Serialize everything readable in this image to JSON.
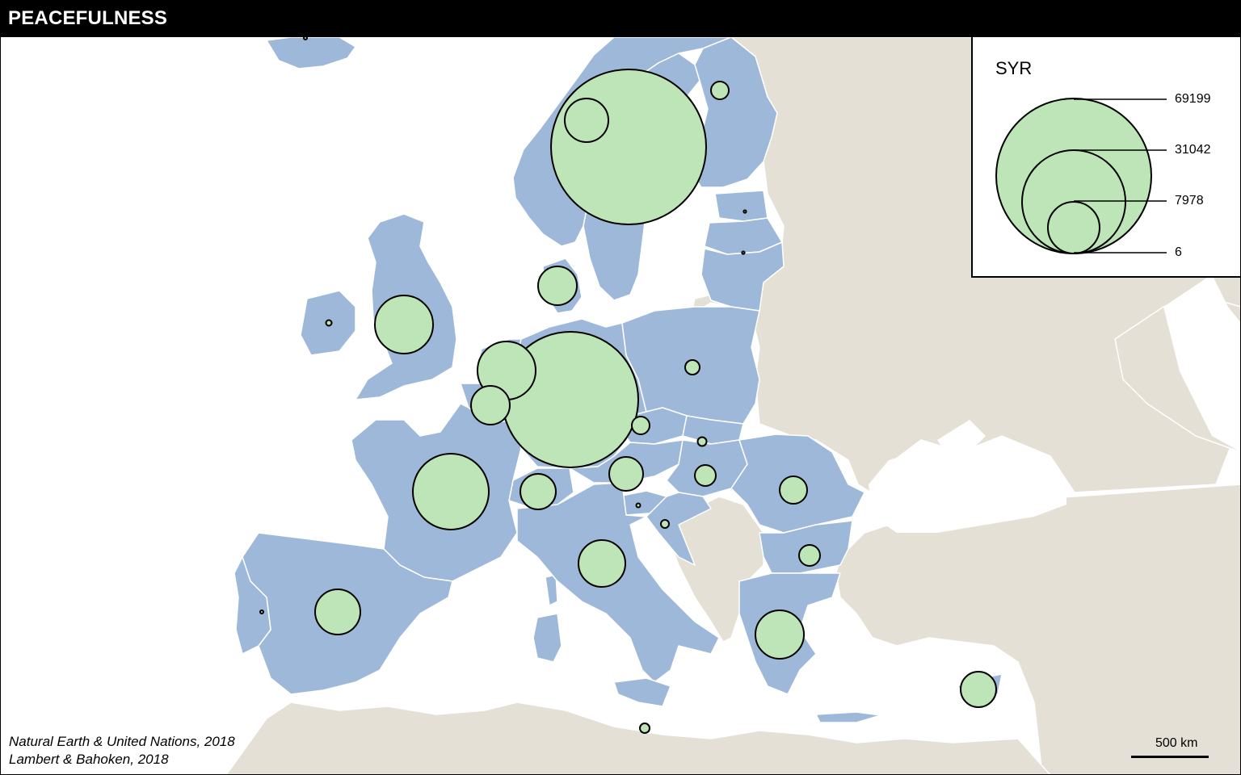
{
  "title": "PEACEFULNESS",
  "colors": {
    "sea": "#ffffff",
    "other_land": "#e5e0d5",
    "eu_countries": "#9eb8d9",
    "country_border": "#ffffff",
    "symbol_fill": "#bde5b7",
    "symbol_stroke": "#000000"
  },
  "legend": {
    "title": "SYR",
    "values": [
      "69199",
      "31042",
      "7978",
      "6"
    ]
  },
  "symbols": [
    {
      "country": "Norway",
      "value_class": "medium"
    },
    {
      "country": "Sweden",
      "value_class": "large"
    },
    {
      "country": "Finland",
      "value_class": "small"
    },
    {
      "country": "Estonia",
      "value_class": "tiny"
    },
    {
      "country": "Latvia",
      "value_class": "tiny"
    },
    {
      "country": "Denmark",
      "value_class": "small"
    },
    {
      "country": "United Kingdom",
      "value_class": "medium"
    },
    {
      "country": "Ireland",
      "value_class": "tiny"
    },
    {
      "country": "Iceland",
      "value_class": "tiny"
    },
    {
      "country": "Netherlands",
      "value_class": "medium"
    },
    {
      "country": "Belgium",
      "value_class": "small"
    },
    {
      "country": "Germany",
      "value_class": "largest"
    },
    {
      "country": "Poland",
      "value_class": "small"
    },
    {
      "country": "Czechia",
      "value_class": "small"
    },
    {
      "country": "Slovakia",
      "value_class": "tiny"
    },
    {
      "country": "Austria",
      "value_class": "small"
    },
    {
      "country": "Hungary",
      "value_class": "small"
    },
    {
      "country": "Romania",
      "value_class": "small"
    },
    {
      "country": "Switzerland",
      "value_class": "small"
    },
    {
      "country": "France",
      "value_class": "medium-large"
    },
    {
      "country": "Slovenia",
      "value_class": "tiny"
    },
    {
      "country": "Croatia",
      "value_class": "tiny"
    },
    {
      "country": "Italy",
      "value_class": "medium"
    },
    {
      "country": "Bulgaria",
      "value_class": "small"
    },
    {
      "country": "Greece",
      "value_class": "medium"
    },
    {
      "country": "Spain",
      "value_class": "medium"
    },
    {
      "country": "Portugal",
      "value_class": "tiny"
    },
    {
      "country": "Cyprus",
      "value_class": "small"
    },
    {
      "country": "Malta",
      "value_class": "small"
    }
  ],
  "source_lines": [
    "Natural Earth & United Nations, 2018",
    "Lambert & Bahoken, 2018"
  ],
  "scale_label": "500 km"
}
